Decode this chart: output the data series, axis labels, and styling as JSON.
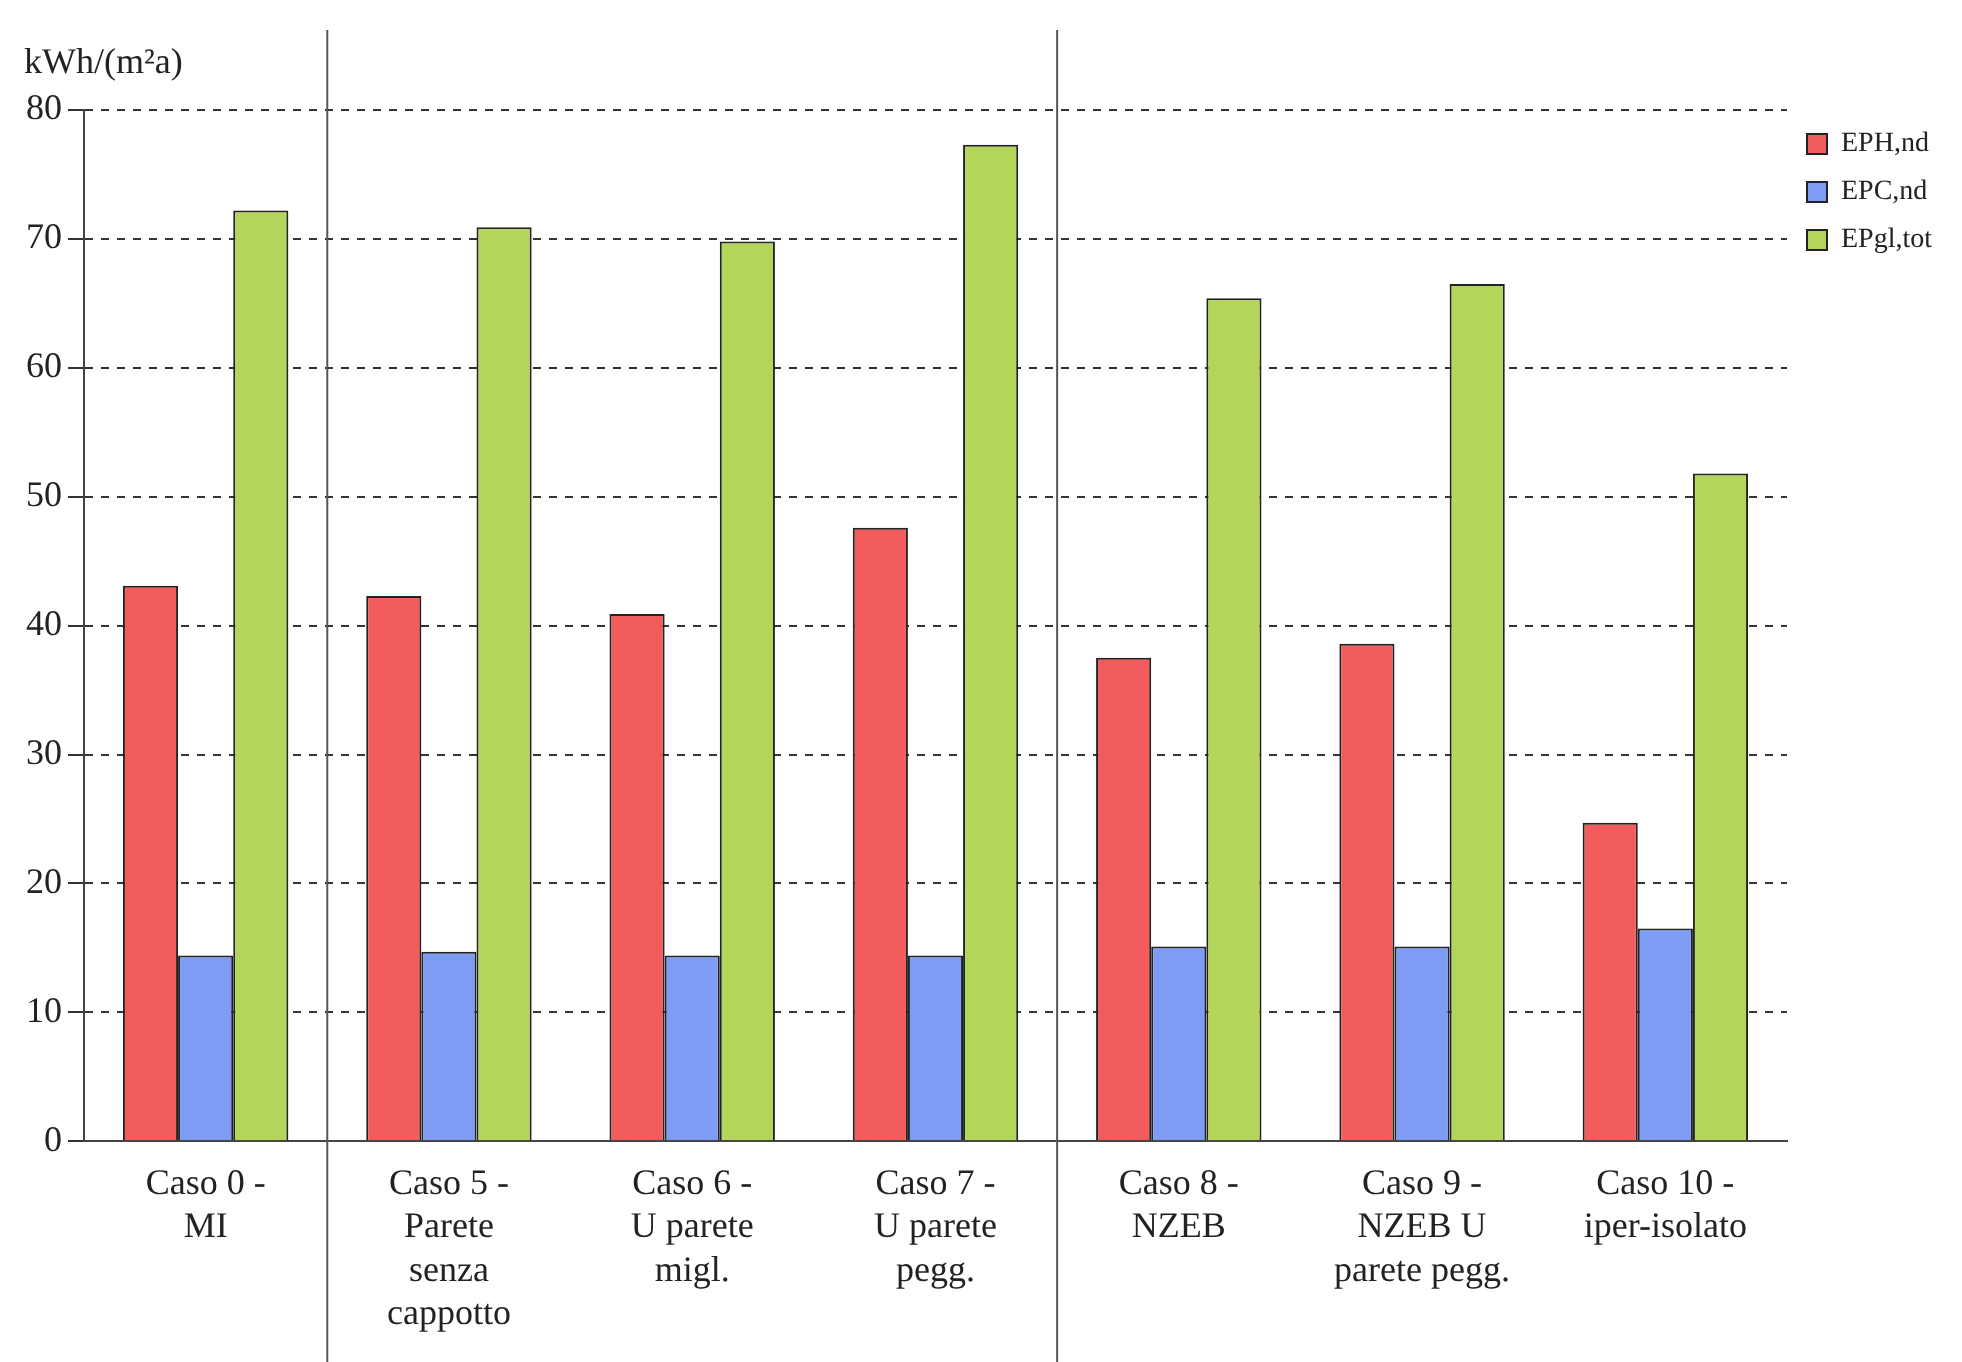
{
  "chart_data": {
    "type": "bar",
    "ylabel": "kWh/(m²a)",
    "categories": [
      "Caso 0 -\nMI",
      "Caso 5 -\nParete\nsenza\ncappotto",
      "Caso 6 -\nU parete\nmigl.",
      "Caso 7 -\nU parete\npegg.",
      "Caso 8 -\nNZEB",
      "Caso 9 -\nNZEB U\nparete pegg.",
      "Caso 10 -\niper-isolato"
    ],
    "series": [
      {
        "name": "EPH,nd",
        "color": "#f25c5c",
        "values": [
          43.1,
          42.3,
          40.9,
          47.6,
          37.5,
          38.6,
          24.7
        ]
      },
      {
        "name": "EPC,nd",
        "color": "#7f9cf5",
        "values": [
          14.4,
          14.7,
          14.4,
          14.4,
          15.1,
          15.1,
          16.5
        ]
      },
      {
        "name": "EPgl,tot",
        "color": "#b3d65a",
        "values": [
          72.2,
          70.9,
          69.8,
          77.3,
          65.4,
          66.5,
          51.8
        ]
      }
    ],
    "ylim": [
      0,
      80
    ],
    "yticks": [
      0,
      10,
      20,
      30,
      40,
      50,
      60,
      70,
      80
    ],
    "grid": "y",
    "legend": "top right"
  }
}
